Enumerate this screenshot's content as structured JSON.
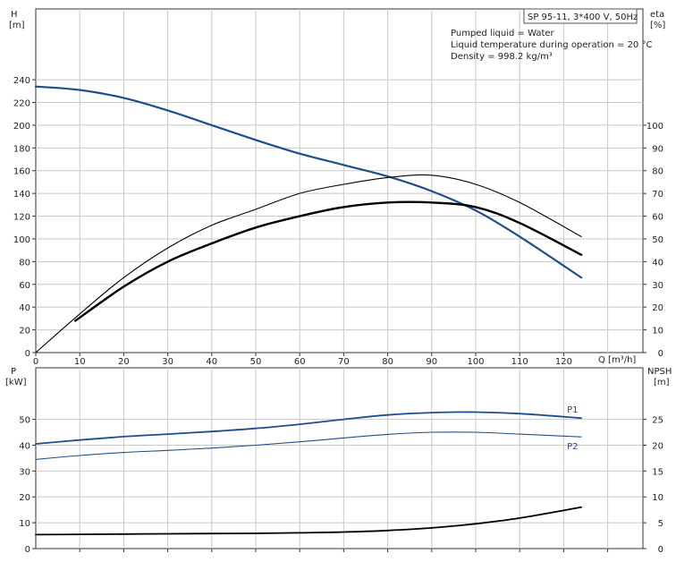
{
  "info_box": {
    "title": "SP 95-11, 3*400 V, 50Hz",
    "lines": [
      "Pumped liquid = Water",
      "Liquid temperature during operation = 20 °C",
      "Density = 998.2 kg/m³"
    ]
  },
  "chart_data": [
    {
      "type": "line",
      "title": "",
      "xlabel": "Q [m³/h]",
      "x_ticks": [
        "0",
        "10",
        "20",
        "30",
        "40",
        "50",
        "60",
        "70",
        "80",
        "90",
        "100",
        "110",
        "120"
      ],
      "xlim": [
        0,
        130
      ],
      "left_axis": {
        "label_line1": "H",
        "label_line2": "[m]",
        "ylim": [
          0,
          260
        ],
        "ticks": [
          "0",
          "20",
          "40",
          "60",
          "80",
          "100",
          "120",
          "140",
          "160",
          "180",
          "200",
          "220",
          "240"
        ]
      },
      "right_axis": {
        "label_line1": "eta",
        "label_line2": "[%]",
        "ylim": [
          0,
          130
        ],
        "ticks": [
          "0",
          "10",
          "20",
          "30",
          "40",
          "50",
          "60",
          "70",
          "80",
          "90",
          "100"
        ]
      },
      "grid": true,
      "series": [
        {
          "axis": "left",
          "color": "#1f4e8c",
          "width": 2.2,
          "x": [
            0,
            10,
            20,
            30,
            40,
            50,
            60,
            70,
            80,
            90,
            100,
            110,
            124
          ],
          "y": [
            234,
            231,
            224,
            213,
            200,
            187,
            175,
            165,
            155,
            142,
            125,
            102,
            66
          ]
        },
        {
          "axis": "right",
          "color": "#000000",
          "width": 1.1,
          "x": [
            0,
            10,
            20,
            30,
            40,
            50,
            60,
            70,
            80,
            90,
            100,
            110,
            124
          ],
          "y": [
            0,
            17,
            33,
            46,
            56,
            63,
            70,
            74,
            77,
            78,
            74,
            66,
            51
          ]
        },
        {
          "axis": "right",
          "color": "#000000",
          "width": 2.4,
          "x": [
            9,
            20,
            30,
            40,
            50,
            60,
            70,
            80,
            90,
            100,
            110,
            124
          ],
          "y": [
            14,
            29,
            40,
            48,
            55,
            60,
            64,
            66,
            66,
            64,
            57,
            43
          ]
        }
      ]
    },
    {
      "type": "line",
      "title": "",
      "xlabel": "",
      "xlim": [
        0,
        130
      ],
      "left_axis": {
        "label_line1": "P",
        "label_line2": "[kW]",
        "ylim": [
          0,
          55
        ],
        "ticks": [
          "0",
          "10",
          "20",
          "30",
          "40",
          "50"
        ]
      },
      "right_axis": {
        "label_line1": "NPSH",
        "label_line2": "[m]",
        "ylim": [
          0,
          27.5
        ],
        "ticks": [
          "0",
          "5",
          "10",
          "15",
          "20",
          "25"
        ]
      },
      "grid": true,
      "series": [
        {
          "name": "P1",
          "axis": "left",
          "color": "#1f4e8c",
          "width": 1.8,
          "x": [
            0,
            10,
            20,
            30,
            40,
            50,
            60,
            70,
            80,
            90,
            100,
            110,
            124
          ],
          "y": [
            40.5,
            42,
            43.3,
            44.3,
            45.3,
            46.5,
            48.1,
            50,
            51.7,
            52.6,
            52.8,
            52.2,
            50.5
          ]
        },
        {
          "name": "P2",
          "axis": "left",
          "color": "#1f4e8c",
          "width": 1.1,
          "x": [
            0,
            10,
            20,
            30,
            40,
            50,
            60,
            70,
            80,
            90,
            100,
            110,
            124
          ],
          "y": [
            34.5,
            36,
            37.2,
            38,
            38.9,
            40,
            41.3,
            42.8,
            44.2,
            45,
            45,
            44.3,
            43.2
          ]
        },
        {
          "axis": "right",
          "color": "#000000",
          "width": 1.8,
          "x": [
            0,
            10,
            20,
            30,
            40,
            50,
            60,
            70,
            80,
            90,
            100,
            110,
            124
          ],
          "y": [
            2.7,
            2.75,
            2.8,
            2.85,
            2.9,
            2.95,
            3.05,
            3.2,
            3.5,
            4,
            4.8,
            5.9,
            8
          ]
        }
      ]
    }
  ]
}
